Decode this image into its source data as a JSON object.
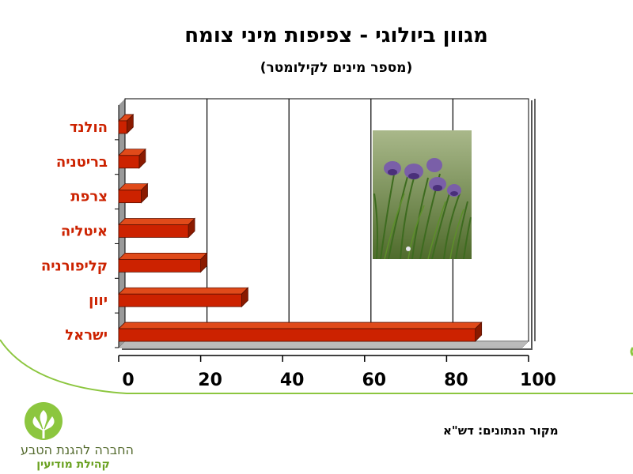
{
  "slide": {
    "title": "מגוון ביולוגי - צפיפות מיני צומח",
    "subtitle": "(מספר מינים לקילומטר)",
    "source": "מקור הנתונים: דש\"א"
  },
  "logo": {
    "org_name": "החברה להגנת הטבע",
    "branch": "קהילת מודיעין"
  },
  "colors": {
    "bar": "#cc2200",
    "bar_top": "#e04a1a",
    "bar_side": "#8a1a00",
    "label": "#cc2200",
    "accent_green": "#8cc63f"
  },
  "chart_data": {
    "type": "bar",
    "orientation": "horizontal",
    "categories": [
      "הולנד",
      "בריטניה",
      "צרפת",
      "איטליה",
      "קליפורניה",
      "יוון",
      "ישראל"
    ],
    "values": [
      2,
      5,
      5.5,
      17,
      20,
      30,
      87
    ],
    "xlim": [
      0,
      100
    ],
    "xticks": [
      0,
      20,
      40,
      60,
      80,
      100
    ],
    "grid": true,
    "title": "מגוון ביולוגי - צפיפות מיני צומח",
    "subtitle": "(מספר מינים לקילומטר)",
    "xlabel": "",
    "ylabel": ""
  }
}
